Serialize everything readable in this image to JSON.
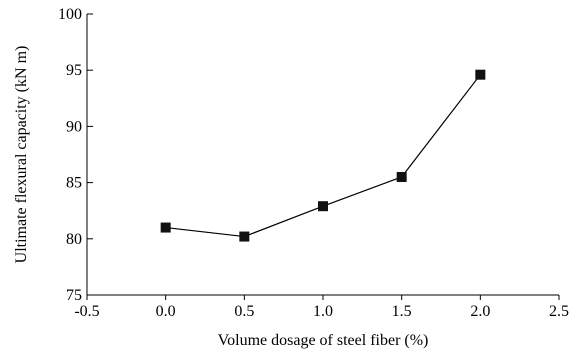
{
  "chart_data": {
    "type": "line",
    "title": "",
    "xlabel": "Volume dosage of steel fiber (%)",
    "ylabel": "Ultimate flexural capacity (kN m)",
    "xlim": [
      -0.5,
      2.5
    ],
    "ylim": [
      75,
      100
    ],
    "x_ticks": [
      -0.5,
      0.0,
      0.5,
      1.0,
      1.5,
      2.0,
      2.5
    ],
    "x_tick_labels": [
      "-0.5",
      "0.0",
      "0.5",
      "1.0",
      "1.5",
      "2.0",
      "2.5"
    ],
    "y_ticks": [
      75,
      80,
      85,
      90,
      95,
      100
    ],
    "y_tick_labels": [
      "75",
      "80",
      "85",
      "90",
      "95",
      "100"
    ],
    "grid": false,
    "legend": "none",
    "series": [
      {
        "marker": "square",
        "color": "#111111",
        "x": [
          0.0,
          0.5,
          1.0,
          1.5,
          2.0
        ],
        "y": [
          81.0,
          80.2,
          82.9,
          85.5,
          94.6
        ]
      }
    ]
  }
}
